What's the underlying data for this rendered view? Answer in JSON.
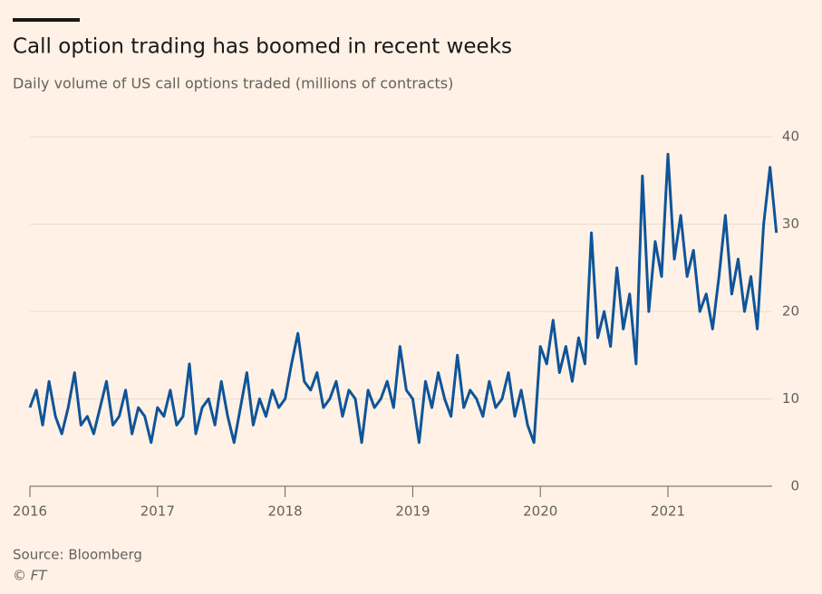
{
  "chart_data": {
    "type": "line",
    "title": "Call option trading has boomed in recent weeks",
    "subtitle": "Daily volume of US call options traded (millions of contracts)",
    "source": "Source: Bloomberg",
    "credit": "© FT",
    "color": "#0f5499",
    "grid": true,
    "x": [
      2016.0,
      2016.05,
      2016.1,
      2016.15,
      2016.2,
      2016.25,
      2016.3,
      2016.35,
      2016.4,
      2016.45,
      2016.5,
      2016.55,
      2016.6,
      2016.65,
      2016.7,
      2016.75,
      2016.8,
      2016.85,
      2016.9,
      2016.95,
      2017.0,
      2017.05,
      2017.1,
      2017.15,
      2017.2,
      2017.25,
      2017.3,
      2017.35,
      2017.4,
      2017.45,
      2017.5,
      2017.55,
      2017.6,
      2017.65,
      2017.7,
      2017.75,
      2017.8,
      2017.85,
      2017.9,
      2017.95,
      2018.0,
      2018.05,
      2018.1,
      2018.15,
      2018.2,
      2018.25,
      2018.3,
      2018.35,
      2018.4,
      2018.45,
      2018.5,
      2018.55,
      2018.6,
      2018.65,
      2018.7,
      2018.75,
      2018.8,
      2018.85,
      2018.9,
      2018.95,
      2019.0,
      2019.05,
      2019.1,
      2019.15,
      2019.2,
      2019.25,
      2019.3,
      2019.35,
      2019.4,
      2019.45,
      2019.5,
      2019.55,
      2019.6,
      2019.65,
      2019.7,
      2019.75,
      2019.8,
      2019.85,
      2019.9,
      2019.95,
      2020.0,
      2020.05,
      2020.1,
      2020.15,
      2020.2,
      2020.25,
      2020.3,
      2020.35,
      2020.4,
      2020.45,
      2020.5,
      2020.55,
      2020.6,
      2020.65,
      2020.7,
      2020.75,
      2020.8,
      2020.85,
      2020.9,
      2020.95,
      2021.0,
      2021.05,
      2021.1,
      2021.15,
      2021.2,
      2021.25,
      2021.3,
      2021.35,
      2021.4,
      2021.45,
      2021.5,
      2021.55,
      2021.6,
      2021.65,
      2021.7,
      2021.75,
      2021.8,
      2021.85
    ],
    "values": [
      9,
      11,
      7,
      12,
      8,
      6,
      9,
      13,
      7,
      8,
      6,
      9,
      12,
      7,
      8,
      11,
      6,
      9,
      8,
      5,
      9,
      8,
      11,
      7,
      8,
      14,
      6,
      9,
      10,
      7,
      12,
      8,
      5,
      9,
      13,
      7,
      10,
      8,
      11,
      9,
      10,
      14,
      17.5,
      12,
      11,
      13,
      9,
      10,
      12,
      8,
      11,
      10,
      5,
      11,
      9,
      10,
      12,
      9,
      16,
      11,
      10,
      5,
      12,
      9,
      13,
      10,
      8,
      15,
      9,
      11,
      10,
      8,
      12,
      9,
      10,
      13,
      8,
      11,
      7,
      5,
      16,
      14,
      19,
      13,
      16,
      12,
      17,
      14,
      29,
      17,
      20,
      16,
      25,
      18,
      22,
      14,
      35.5,
      20,
      28,
      24,
      38,
      26,
      31,
      24,
      27,
      20,
      22,
      18,
      24,
      31,
      22,
      26,
      20,
      24,
      18,
      30,
      36.5,
      29
    ],
    "xlim": [
      2016,
      2021.85
    ],
    "xticks": [
      2016,
      2017,
      2018,
      2019,
      2020,
      2021
    ],
    "ylim": [
      0,
      40
    ],
    "yticks": [
      0,
      10,
      20,
      30,
      40
    ]
  }
}
